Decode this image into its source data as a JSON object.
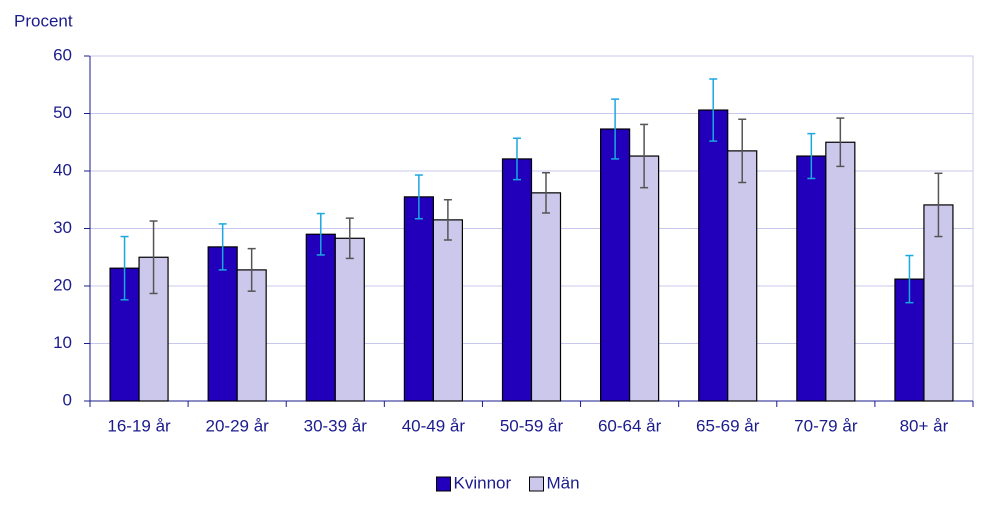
{
  "chart_data": {
    "type": "bar",
    "y_label": "Procent",
    "categories": [
      "16-19 år",
      "20-29 år",
      "30-39 år",
      "40-49 år",
      "50-59 år",
      "60-64 år",
      "65-69 år",
      "70-79 år",
      "80+ år"
    ],
    "series": [
      {
        "name": "Kvinnor",
        "color": "#2200bb",
        "error_color": "#1aa8e0",
        "values": [
          23.1,
          26.8,
          29.0,
          35.5,
          42.1,
          47.3,
          50.6,
          42.6,
          21.2
        ],
        "errors": [
          5.5,
          4.0,
          3.6,
          3.8,
          3.6,
          5.2,
          5.4,
          3.9,
          4.1
        ]
      },
      {
        "name": "Män",
        "color": "#ccc8ec",
        "error_color": "#555555",
        "values": [
          25.0,
          22.8,
          28.3,
          31.5,
          36.2,
          42.6,
          43.5,
          45.0,
          34.1
        ],
        "errors": [
          6.3,
          3.7,
          3.5,
          3.5,
          3.5,
          5.5,
          5.5,
          4.2,
          5.5
        ]
      }
    ],
    "ylim": [
      0,
      60
    ],
    "yticks": [
      0,
      10,
      20,
      30,
      40,
      50,
      60
    ],
    "grid": true,
    "legend": "bottom"
  }
}
